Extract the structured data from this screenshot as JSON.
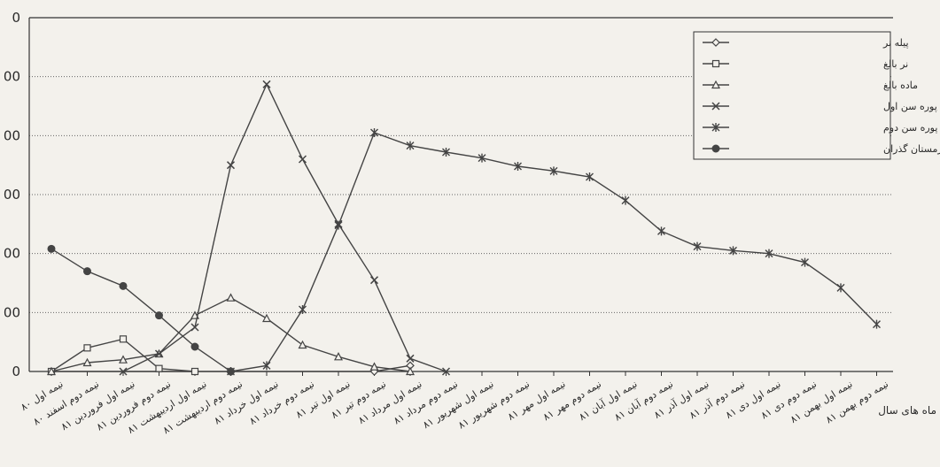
{
  "chart_data": {
    "type": "line",
    "title": "",
    "xlabel": "ماه های سال",
    "ylabel": "",
    "ylim": [
      0,
      600
    ],
    "y_tick_labels": [
      "0",
      "00",
      "00",
      "00",
      "00",
      "00",
      "0"
    ],
    "grid": "horizontal dotted",
    "legend_position": "top-right",
    "categories": [
      "نیمه اول ۸۰",
      "نیمه دوم اسفند ۸۰",
      "نیمه اول فروردین ۸۱",
      "نیمه دوم فروردین ۸۱",
      "نیمه اول اردیبهشت ۸۱",
      "نیمه دوم اردیبهشت ۸۱",
      "نیمه اول خرداد ۸۱",
      "نیمه دوم خرداد ۸۱",
      "نیمه اول تیر ۸۱",
      "نیمه دوم تیر ۸۱",
      "نیمه اول مرداد ۸۱",
      "نیمه دوم مرداد ۸۱",
      "نیمه اول شهریور ۸۱",
      "نیمه دوم شهریور ۸۱",
      "نیمه اول مهر ۸۱",
      "نیمه دوم مهر ۸۱",
      "نیمه اول آبان ۸۱",
      "نیمه دوم آبان ۸۱",
      "نیمه اول آذر ۸۱",
      "نیمه دوم آذر ۸۱",
      "نیمه اول دی ۸۱",
      "نیمه دوم دی ۸۱",
      "نیمه اول بهمن ۸۱",
      "نیمه دوم بهمن ۸۱"
    ],
    "series": [
      {
        "name": "پیله نر",
        "marker": "diamond",
        "color": "#444444",
        "points": [
          [
            0,
            0
          ],
          [
            9,
            0
          ],
          [
            10,
            10
          ]
        ]
      },
      {
        "name": "نر بالغ",
        "marker": "square",
        "color": "#444444",
        "points": [
          [
            0,
            0
          ],
          [
            1,
            40
          ],
          [
            2,
            55
          ],
          [
            3,
            5
          ],
          [
            4,
            0
          ]
        ]
      },
      {
        "name": "ماده بالغ",
        "marker": "triangle",
        "color": "#444444",
        "points": [
          [
            0,
            0
          ],
          [
            1,
            15
          ],
          [
            2,
            20
          ],
          [
            3,
            30
          ],
          [
            4,
            95
          ],
          [
            5,
            125
          ],
          [
            6,
            90
          ],
          [
            7,
            45
          ],
          [
            8,
            25
          ],
          [
            9,
            8
          ],
          [
            10,
            0
          ]
        ]
      },
      {
        "name": "پوره سن اول",
        "marker": "x",
        "color": "#444444",
        "points": [
          [
            2,
            0
          ],
          [
            3,
            30
          ],
          [
            4,
            75
          ],
          [
            5,
            350
          ],
          [
            6,
            487
          ],
          [
            7,
            360
          ],
          [
            8,
            250
          ],
          [
            9,
            155
          ],
          [
            10,
            22
          ],
          [
            11,
            0
          ]
        ]
      },
      {
        "name": "پوره سن دوم",
        "marker": "star",
        "color": "#444444",
        "points": [
          [
            5,
            0
          ],
          [
            6,
            10
          ],
          [
            7,
            105
          ],
          [
            8,
            248
          ],
          [
            9,
            405
          ],
          [
            10,
            383
          ],
          [
            11,
            372
          ],
          [
            12,
            362
          ],
          [
            13,
            348
          ],
          [
            14,
            340
          ],
          [
            15,
            330
          ],
          [
            16,
            290
          ],
          [
            17,
            238
          ],
          [
            18,
            212
          ],
          [
            19,
            205
          ],
          [
            20,
            200
          ],
          [
            21,
            185
          ],
          [
            22,
            142
          ],
          [
            23,
            80
          ]
        ]
      },
      {
        "name": "پوره سن دوم زمستان گذران",
        "marker": "circle",
        "color": "#444444",
        "points": [
          [
            0,
            208
          ],
          [
            1,
            170
          ],
          [
            2,
            145
          ],
          [
            3,
            95
          ],
          [
            4,
            42
          ],
          [
            5,
            0
          ]
        ]
      }
    ]
  }
}
